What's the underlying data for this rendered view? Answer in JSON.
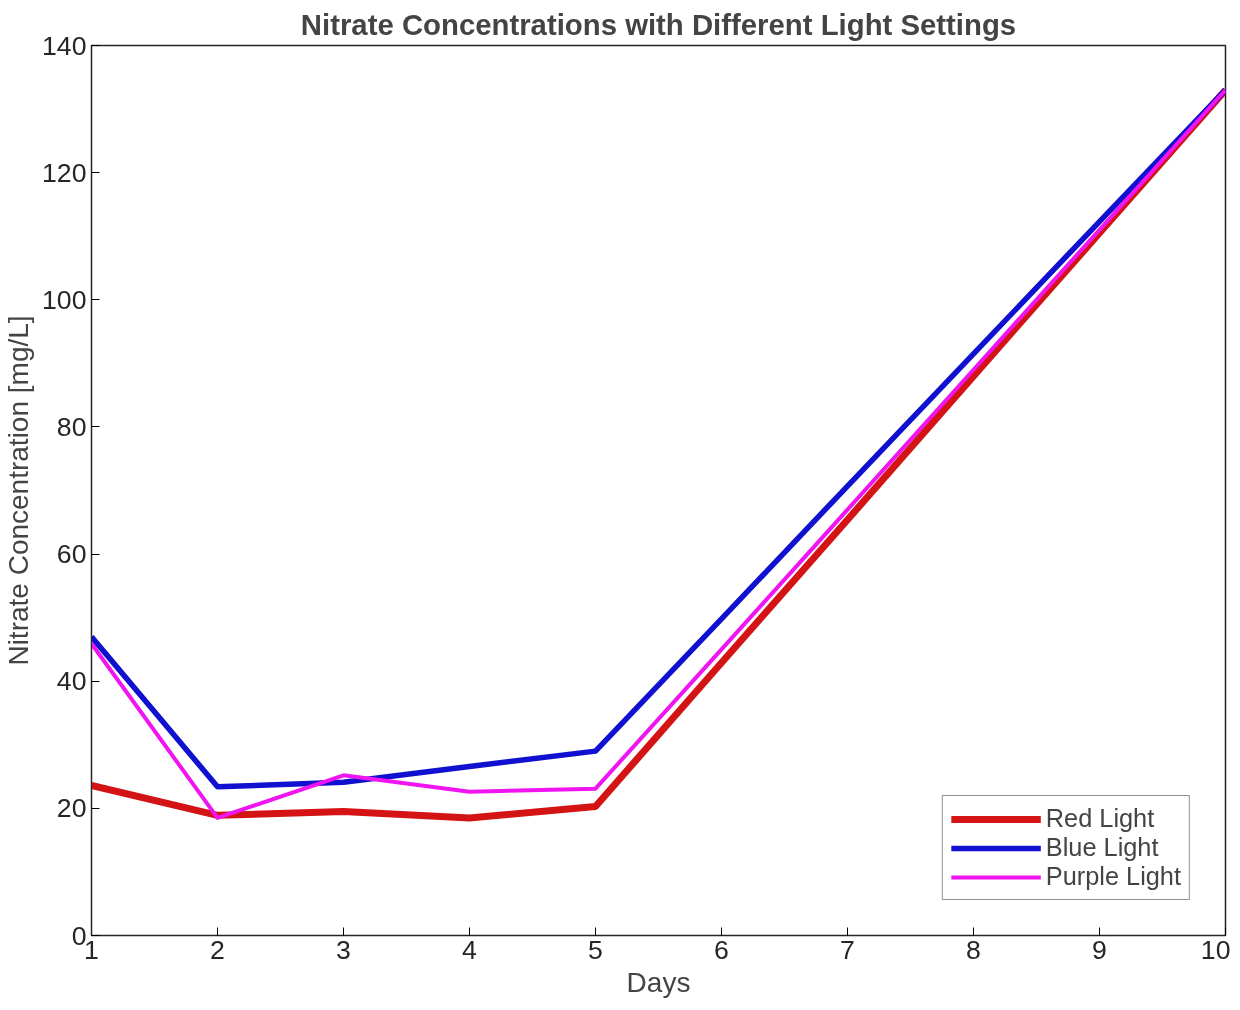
{
  "chart_data": {
    "type": "line",
    "title": "Nitrate Concentrations with Different Light Settings",
    "xlabel": "Days",
    "ylabel": "Nitrate Concentration [mg/L]",
    "x": [
      1,
      2,
      3,
      4,
      5,
      6,
      7,
      8,
      9,
      10
    ],
    "series": [
      {
        "name": "Red Light",
        "color": "#d41414",
        "values": [
          23.6,
          18.9,
          19.5,
          18.5,
          20.3,
          42.9,
          65.4,
          88,
          110.5,
          133
        ]
      },
      {
        "name": "Blue Light",
        "color": "#1010d0",
        "values": [
          47,
          23.4,
          24.1,
          26.6,
          29,
          49.8,
          70.7,
          91.5,
          112.3,
          133
        ]
      },
      {
        "name": "Purple Light",
        "color": "#f014f0",
        "values": [
          45.9,
          18.5,
          25.2,
          22.6,
          23.1,
          45,
          67,
          89,
          111,
          133
        ]
      }
    ],
    "xlim": [
      1,
      10
    ],
    "ylim": [
      0,
      140
    ],
    "xticks": [
      1,
      2,
      3,
      4,
      5,
      6,
      7,
      8,
      9,
      10
    ],
    "yticks": [
      0,
      20,
      40,
      60,
      80,
      100,
      120,
      140
    ],
    "grid": false,
    "legend": "bottom right",
    "marker": "none",
    "line_style": "solid"
  }
}
